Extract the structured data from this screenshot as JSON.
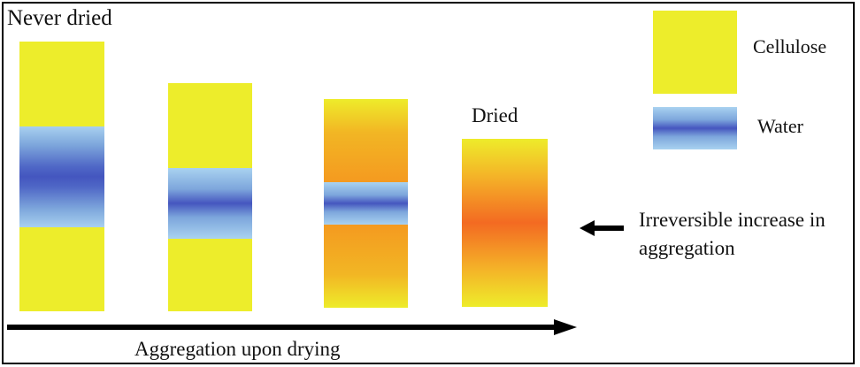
{
  "labels": {
    "never_dried": "Never dried",
    "dried": "Dried",
    "irreversible_line1": "Irreversible increase in",
    "irreversible_line2": "aggregation",
    "x_axis": "Aggregation upon drying"
  },
  "legend": [
    {
      "label": "Cellulose",
      "color": "#eded2b"
    },
    {
      "label": "Water",
      "color": "#4456bf"
    }
  ],
  "colors": {
    "cellulose": "#eded2b",
    "water_dark": "#4456bf",
    "water_light": "#a8d0ef",
    "aggregated": "#f36a22",
    "arrow": "#000000"
  }
}
